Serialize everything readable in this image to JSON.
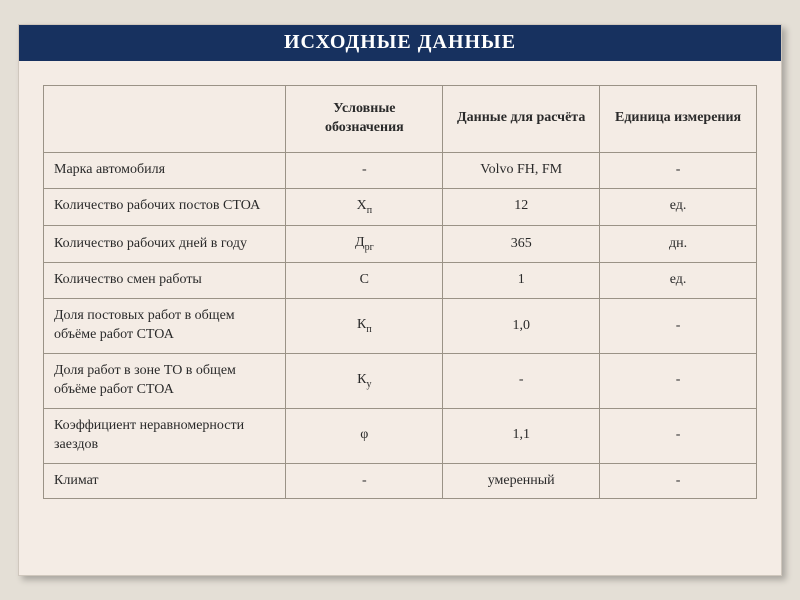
{
  "title": "ИСХОДНЫЕ   ДАННЫЕ",
  "colors": {
    "page_bg": "#e4dfd6",
    "card_bg": "#f4ece5",
    "card_border": "#cfc7bd",
    "header_bg": "#17315f",
    "header_text": "#ffffff",
    "cell_border": "#9a9286",
    "text": "#2a2a2a"
  },
  "table": {
    "columns": [
      {
        "label": "",
        "width_pct": 34,
        "align": "left"
      },
      {
        "label": "Условные обозначения",
        "width_pct": 22,
        "align": "center"
      },
      {
        "label": "Данные для расчёта",
        "width_pct": 22,
        "align": "center"
      },
      {
        "label": "Единица измерения",
        "width_pct": 22,
        "align": "center"
      }
    ],
    "rows": [
      {
        "param": "Марка автомобиля",
        "symbol": "-",
        "value": "Volvo FH, FM",
        "unit": "-"
      },
      {
        "param": "Количество рабочих постов СТОА",
        "symbol_base": "Х",
        "symbol_sub": "п",
        "value": "12",
        "unit": "ед."
      },
      {
        "param": "Количество рабочих дней в году",
        "symbol_base": "Д",
        "symbol_sub": "рг",
        "value": "365",
        "unit": "дн."
      },
      {
        "param": "Количество смен работы",
        "symbol": "С",
        "value": "1",
        "unit": "ед."
      },
      {
        "param": "Доля постовых работ в общем объёме работ СТОА",
        "symbol_base": "К",
        "symbol_sub": "п",
        "value": "1,0",
        "unit": "-"
      },
      {
        "param": "Доля работ в зоне ТО в общем объёме работ СТОА",
        "symbol_base": "К",
        "symbol_sub": "у",
        "value": "-",
        "unit": "-"
      },
      {
        "param": "Коэффициент неравномерности заездов",
        "symbol": "φ",
        "value": "1,1",
        "unit": "-"
      },
      {
        "param": "Климат",
        "symbol": "-",
        "value": "умеренный",
        "unit": "-"
      }
    ]
  },
  "typography": {
    "title_fontsize": 20,
    "title_weight": "bold",
    "header_fontsize": 14,
    "header_weight": "bold",
    "cell_fontsize": 14,
    "font_family": "Times New Roman"
  }
}
